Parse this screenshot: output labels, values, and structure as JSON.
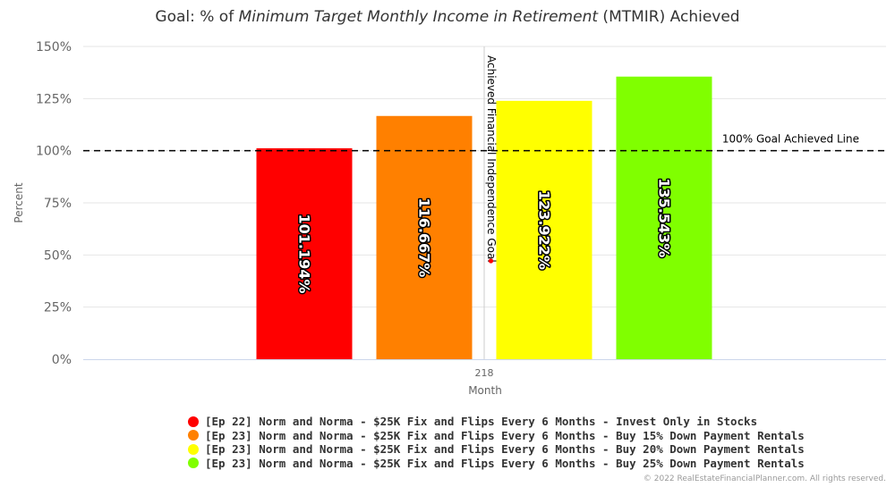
{
  "chart_data": {
    "type": "bar",
    "title": {
      "pre": "Goal: % of ",
      "italic": "Minimum Target Monthly Income in Retirement",
      "post": " (MTMIR) Achieved"
    },
    "xlabel": "Month",
    "ylabel": "Percent",
    "categories": [
      "218"
    ],
    "ylim": [
      0,
      150
    ],
    "yticks": [
      0,
      25,
      50,
      75,
      100,
      125,
      150
    ],
    "ytick_labels": [
      "0%",
      "25%",
      "50%",
      "75%",
      "100%",
      "125%",
      "150%"
    ],
    "grid": true,
    "legend_position": "bottom",
    "series": [
      {
        "name": "[Ep 22] Norm and Norma - $25K Fix and Flips Every 6 Months - Invest Only in Stocks",
        "values": [
          101.194
        ],
        "label": "101.194%",
        "color": "#ff0000"
      },
      {
        "name": "[Ep 23] Norm and Norma - $25K Fix and Flips Every 6 Months - Buy 15% Down Payment Rentals",
        "values": [
          116.667
        ],
        "label": "116.667%",
        "color": "#ff8000"
      },
      {
        "name": "[Ep 23] Norm and Norma - $25K Fix and Flips Every 6 Months - Buy 20% Down Payment Rentals",
        "values": [
          123.922
        ],
        "label": "123.922%",
        "color": "#ffff00"
      },
      {
        "name": "[Ep 23] Norm and Norma - $25K Fix and Flips Every 6 Months - Buy 25% Down Payment Rentals",
        "values": [
          135.543
        ],
        "label": "135.543%",
        "color": "#80ff00"
      }
    ],
    "goal_line": {
      "value": 100,
      "label": "100% Goal Achieved Line",
      "style": "dashed",
      "color": "#000000"
    },
    "vertical_marker": {
      "label": "Achieved Financial Independence Goal",
      "color": "#cccccc",
      "dot_color": "#ff0000"
    }
  },
  "credits": "© 2022 RealEstateFinancialPlanner.com. All rights reserved."
}
